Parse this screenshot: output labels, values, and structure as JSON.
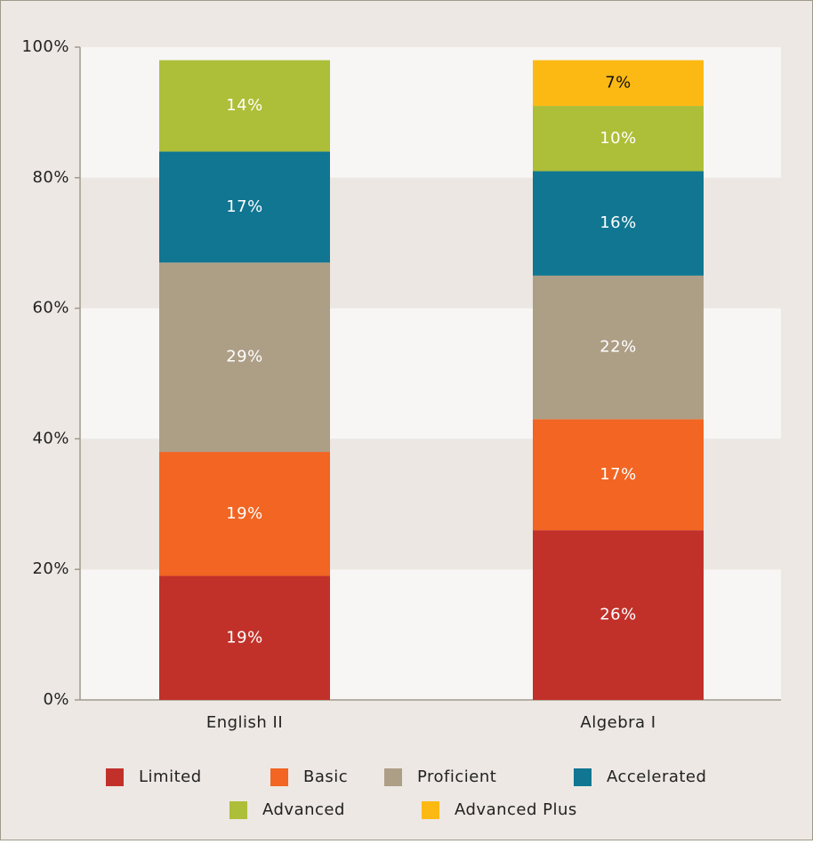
{
  "chart_data": {
    "type": "stacked_bar",
    "categories": [
      "English II",
      "Algebra I"
    ],
    "series": [
      {
        "name": "Limited",
        "color": "#c1312a",
        "values": [
          19,
          26
        ],
        "value_labels": [
          "19%",
          "26%"
        ]
      },
      {
        "name": "Basic",
        "color": "#f26522",
        "values": [
          19,
          17
        ],
        "value_labels": [
          "19%",
          "17%"
        ]
      },
      {
        "name": "Proficient",
        "color": "#ad9e86",
        "values": [
          29,
          22
        ],
        "value_labels": [
          "29%",
          "22%"
        ]
      },
      {
        "name": "Accelerated",
        "color": "#107692",
        "values": [
          17,
          16
        ],
        "value_labels": [
          "17%",
          "16%"
        ]
      },
      {
        "name": "Advanced",
        "color": "#adbe38",
        "values": [
          14,
          10
        ],
        "value_labels": [
          "14%",
          "10%"
        ]
      },
      {
        "name": "Advanced Plus",
        "color": "#fdb913",
        "values": [
          null,
          7
        ],
        "value_labels": [
          null,
          "7%"
        ]
      }
    ],
    "ylim": [
      0,
      100
    ],
    "yticks": [
      {
        "value": 0,
        "label": "0%"
      },
      {
        "value": 20,
        "label": "20%"
      },
      {
        "value": 40,
        "label": "40%"
      },
      {
        "value": 60,
        "label": "60%"
      },
      {
        "value": 80,
        "label": "80%"
      },
      {
        "value": 100,
        "label": "100%"
      }
    ],
    "legend": "bottom"
  }
}
